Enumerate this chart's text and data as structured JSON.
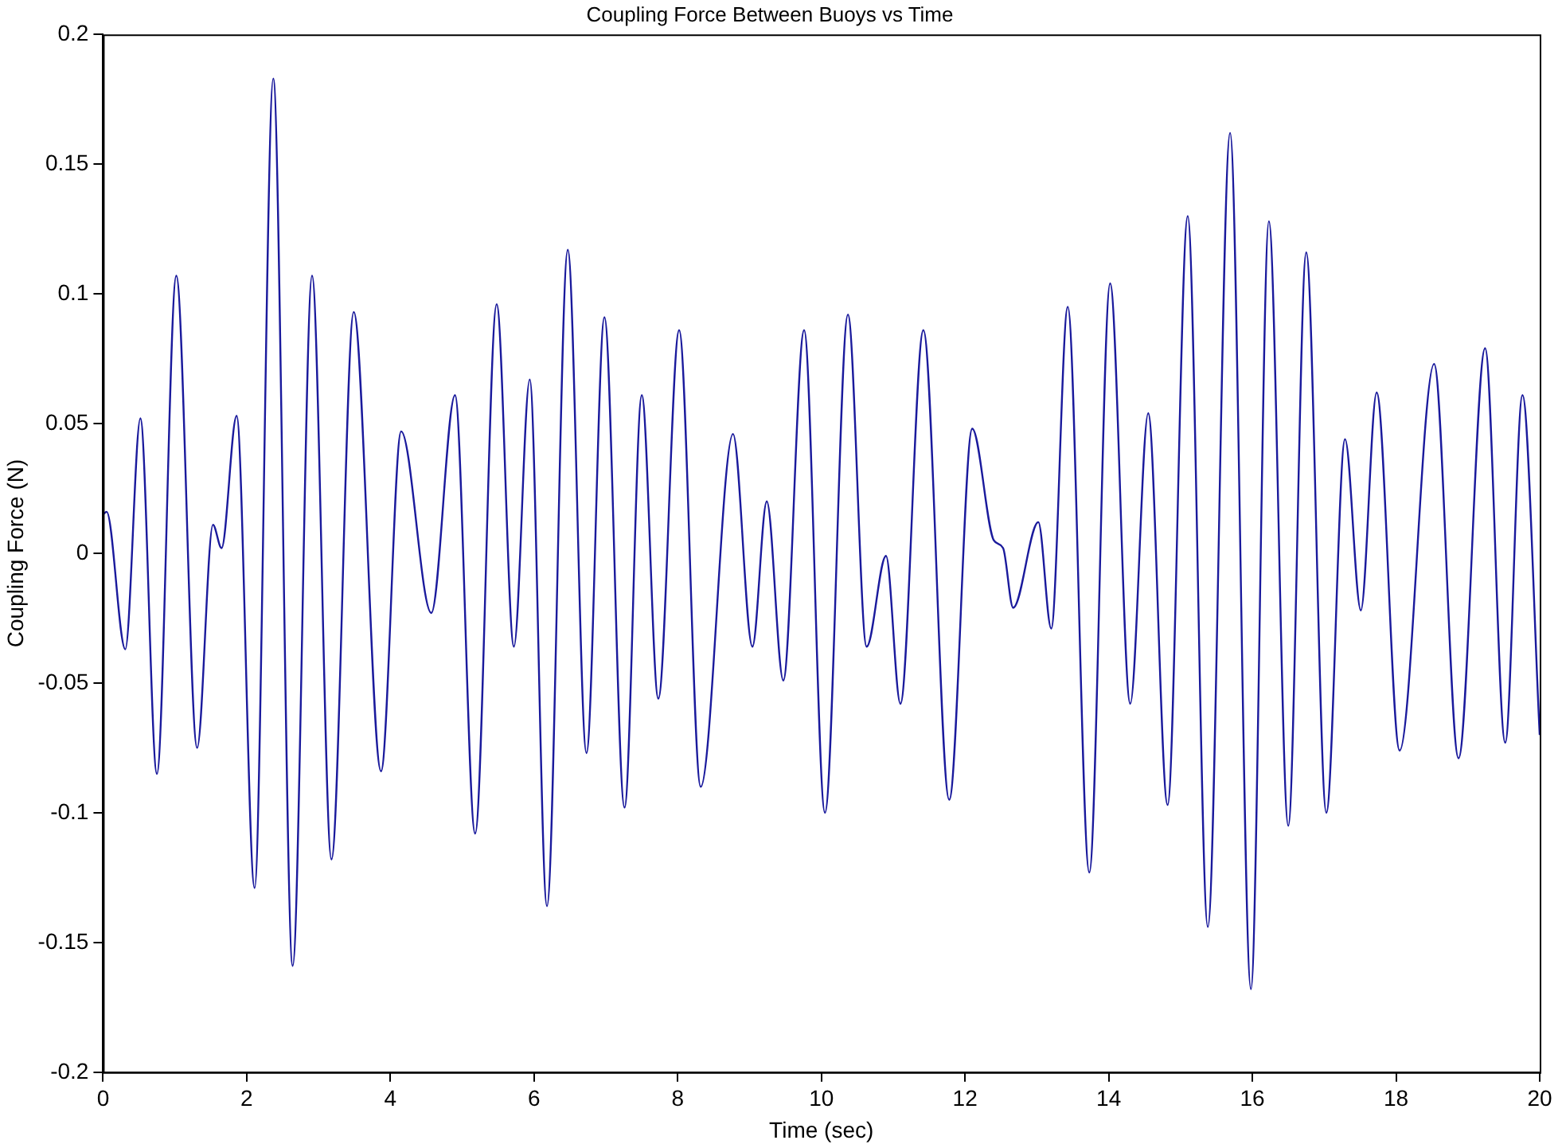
{
  "chart_data": {
    "type": "line",
    "title": "Coupling Force Between Buoys vs Time",
    "xlabel": "Time (sec)",
    "ylabel": "Coupling Force (N)",
    "xlim": [
      0,
      20
    ],
    "xticks": [
      0,
      2,
      4,
      6,
      8,
      10,
      12,
      14,
      16,
      18,
      20
    ],
    "ylim": [
      -0.2,
      0.2
    ],
    "yticks": [
      -0.2,
      -0.15,
      -0.1,
      -0.05,
      0,
      0.05,
      0.1,
      0.15,
      0.2
    ],
    "marker": "none",
    "line_style": "solid",
    "series": [
      {
        "color": "#1a1a9c",
        "x": [
          0,
          0.05,
          0.31,
          0.52,
          0.75,
          1.02,
          1.31,
          1.53,
          1.65,
          1.86,
          2.11,
          2.37,
          2.64,
          2.91,
          3.18,
          3.49,
          3.87,
          4.15,
          4.57,
          4.9,
          5.18,
          5.48,
          5.72,
          5.94,
          6.18,
          6.47,
          6.73,
          6.98,
          7.26,
          7.5,
          7.73,
          8.02,
          8.32,
          8.77,
          9.04,
          9.24,
          9.47,
          9.76,
          10.05,
          10.37,
          10.63,
          10.9,
          11.1,
          11.42,
          11.78,
          12.1,
          12.4,
          12.53,
          12.67,
          13.02,
          13.2,
          13.43,
          13.73,
          14.02,
          14.3,
          14.55,
          14.82,
          15.1,
          15.38,
          15.69,
          15.98,
          16.23,
          16.5,
          16.75,
          17.03,
          17.29,
          17.51,
          17.73,
          18.05,
          18.53,
          18.87,
          19.24,
          19.52,
          19.76,
          20
        ],
        "values": [
          0.015,
          0.016,
          -0.037,
          0.052,
          -0.085,
          0.107,
          -0.075,
          0.011,
          0.002,
          0.053,
          -0.129,
          0.183,
          -0.159,
          0.107,
          -0.118,
          0.093,
          -0.084,
          0.047,
          -0.023,
          0.061,
          -0.108,
          0.096,
          -0.036,
          0.067,
          -0.136,
          0.117,
          -0.077,
          0.091,
          -0.098,
          0.061,
          -0.056,
          0.086,
          -0.09,
          0.046,
          -0.036,
          0.02,
          -0.049,
          0.086,
          -0.1,
          0.092,
          -0.036,
          -0.001,
          -0.058,
          0.086,
          -0.095,
          0.048,
          0.005,
          0.002,
          -0.021,
          0.012,
          -0.029,
          0.095,
          -0.123,
          0.104,
          -0.058,
          0.054,
          -0.097,
          0.13,
          -0.144,
          0.162,
          -0.168,
          0.128,
          -0.105,
          0.116,
          -0.1,
          0.044,
          -0.022,
          0.062,
          -0.076,
          0.073,
          -0.079,
          0.079,
          -0.073,
          0.061,
          -0.07
        ]
      }
    ]
  }
}
